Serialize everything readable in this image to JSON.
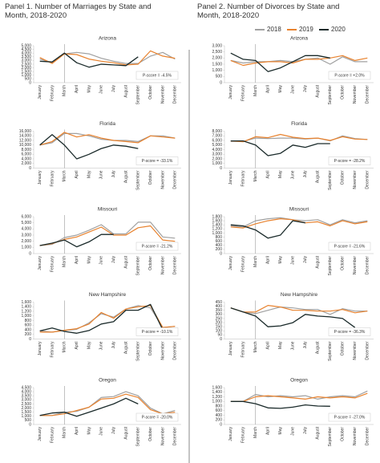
{
  "panel_titles": [
    "Panel 1. Number of Marriages by State and Month, 2018-2020",
    "Panel 2. Number of Divorces by State and Month, 2018-2020"
  ],
  "legend": [
    {
      "name": "2018",
      "color": "#a0a0a0"
    },
    {
      "name": "2019",
      "color": "#e8822e"
    },
    {
      "name": "2020",
      "color": "#1a2a2a"
    }
  ],
  "chart_data": [
    {
      "type": "line",
      "title": "Arizona",
      "annotation": "P-score = -4.5%",
      "categories": [
        "January",
        "February",
        "March",
        "April",
        "May",
        "June",
        "July",
        "August",
        "September",
        "October",
        "November",
        "December"
      ],
      "ylim": [
        0,
        5000
      ],
      "yticks": [
        0,
        500,
        {
          "value": 1000,
          "label": "1,000"
        },
        {
          "value": 1500,
          "label": "1,500"
        },
        {
          "value": 2000,
          "label": "2,000"
        },
        {
          "value": 2500,
          "label": "2,500"
        },
        {
          "value": 3000,
          "label": "3,000"
        },
        {
          "value": 3500,
          "label": "3,500"
        },
        {
          "value": 4000,
          "label": "4,000"
        },
        {
          "value": 4500,
          "label": "4,500"
        },
        {
          "value": 5000,
          "label": "5,000"
        }
      ],
      "series": [
        {
          "values": [
            3200,
            2700,
            3900,
            4100,
            3900,
            3300,
            2900,
            2600,
            2600,
            3600,
            4100,
            3200
          ]
        },
        {
          "values": [
            3400,
            2600,
            3900,
            3800,
            3200,
            2900,
            2700,
            2400,
            2500,
            4300,
            3600,
            3300
          ]
        },
        {
          "values": [
            2900,
            2800,
            4000,
            2700,
            2100,
            2500,
            2400,
            2300,
            3500,
            null,
            null,
            null
          ]
        }
      ]
    },
    {
      "type": "line",
      "title": "Florida",
      "annotation": "P-score = -33.1%",
      "categories": [
        "January",
        "February",
        "March",
        "April",
        "May",
        "June",
        "July",
        "August",
        "September",
        "October",
        "November",
        "December"
      ],
      "ylim": [
        0,
        16000
      ],
      "yticks": [
        0,
        {
          "value": 2000,
          "label": "2,000"
        },
        {
          "value": 4000,
          "label": "4,000"
        },
        {
          "value": 6000,
          "label": "6,000"
        },
        {
          "value": 8000,
          "label": "8,000"
        },
        {
          "value": 10000,
          "label": "10,000"
        },
        {
          "value": 12000,
          "label": "12,000"
        },
        {
          "value": 14000,
          "label": "14,000"
        },
        {
          "value": 16000,
          "label": "16,000"
        }
      ],
      "series": [
        {
          "values": [
            10000,
            11000,
            15000,
            15000,
            14000,
            12500,
            12000,
            12000,
            11500,
            14000,
            14000,
            13000
          ]
        },
        {
          "values": [
            10000,
            11500,
            15500,
            13500,
            14500,
            13000,
            12000,
            11500,
            11000,
            14000,
            13500,
            13000
          ]
        },
        {
          "values": [
            10000,
            14500,
            10000,
            4000,
            6000,
            8500,
            10000,
            9500,
            8500,
            null,
            null,
            null
          ]
        }
      ]
    },
    {
      "type": "line",
      "title": "Missouri",
      "annotation": "P-score = -21.2%",
      "categories": [
        "January",
        "February",
        "March",
        "April",
        "May",
        "June",
        "July",
        "August",
        "September",
        "October",
        "November",
        "December"
      ],
      "ylim": [
        0,
        6000
      ],
      "yticks": [
        0,
        {
          "value": 1000,
          "label": "1,000"
        },
        {
          "value": 2000,
          "label": "2,000"
        },
        {
          "value": 3000,
          "label": "3,000"
        },
        {
          "value": 4000,
          "label": "4,000"
        },
        {
          "value": 5000,
          "label": "5,000"
        },
        {
          "value": 6000,
          "label": "6,000"
        }
      ],
      "series": [
        {
          "values": [
            1300,
            1500,
            2600,
            3000,
            3800,
            4700,
            3200,
            3200,
            5100,
            5100,
            2700,
            2500
          ]
        },
        {
          "values": [
            1300,
            1600,
            2300,
            2700,
            3500,
            4300,
            3000,
            3000,
            4200,
            4500,
            2200,
            2000
          ]
        },
        {
          "values": [
            1300,
            1700,
            2200,
            1100,
            1900,
            3100,
            3100,
            null,
            null,
            null,
            null,
            null
          ]
        }
      ]
    },
    {
      "type": "line",
      "title": "New Hampshire",
      "annotation": "P-score = -10.1%",
      "categories": [
        "January",
        "February",
        "March",
        "April",
        "May",
        "June",
        "July",
        "August",
        "September",
        "October",
        "November",
        "December"
      ],
      "ylim": [
        0,
        1600
      ],
      "yticks": [
        0,
        200,
        400,
        600,
        800,
        {
          "value": 1000,
          "label": "1,000"
        },
        {
          "value": 1200,
          "label": "1,200"
        },
        {
          "value": 1400,
          "label": "1,400"
        },
        {
          "value": 1600,
          "label": "1,600"
        }
      ],
      "series": [
        {
          "values": [
            350,
            300,
            370,
            420,
            700,
            1100,
            950,
            1300,
            1450,
            1350,
            500,
            550
          ]
        },
        {
          "values": [
            300,
            300,
            380,
            450,
            650,
            1150,
            900,
            1300,
            1400,
            1450,
            500,
            550
          ]
        },
        {
          "values": [
            350,
            480,
            330,
            250,
            370,
            650,
            750,
            1250,
            1250,
            1500,
            400,
            null
          ]
        }
      ]
    },
    {
      "type": "line",
      "title": "Oregon",
      "annotation": "P-score = -20.0%",
      "categories": [
        "January",
        "February",
        "March",
        "April",
        "May",
        "June",
        "July",
        "August",
        "September",
        "October",
        "November",
        "December"
      ],
      "ylim": [
        0,
        4500
      ],
      "yticks": [
        0,
        500,
        {
          "value": 1000,
          "label": "1,000"
        },
        {
          "value": 1500,
          "label": "1,500"
        },
        {
          "value": 2000,
          "label": "2,000"
        },
        {
          "value": 2500,
          "label": "2,500"
        },
        {
          "value": 3000,
          "label": "3,000"
        },
        {
          "value": 3500,
          "label": "3,500"
        },
        {
          "value": 4000,
          "label": "4,000"
        },
        {
          "value": 4500,
          "label": "4,500"
        }
      ],
      "series": [
        {
          "values": [
            1100,
            1100,
            1500,
            1600,
            2100,
            3300,
            3400,
            4000,
            3500,
            2000,
            1300,
            1700
          ]
        },
        {
          "values": [
            1100,
            1100,
            1300,
            1700,
            2100,
            3100,
            3200,
            3700,
            3300,
            1800,
            1300,
            1500
          ]
        },
        {
          "values": [
            1100,
            1400,
            1500,
            1000,
            1500,
            2000,
            2500,
            3200,
            2500,
            null,
            null,
            null
          ]
        }
      ]
    },
    {
      "type": "line",
      "title": "Arizona",
      "annotation": "P-score = +2.0%",
      "categories": [
        "January",
        "February",
        "March",
        "April",
        "May",
        "June",
        "July",
        "August",
        "September",
        "October",
        "November",
        "December"
      ],
      "ylim": [
        0,
        3000
      ],
      "yticks": [
        0,
        500,
        {
          "value": 1000,
          "label": "1,000"
        },
        {
          "value": 1500,
          "label": "1,500"
        },
        {
          "value": 2000,
          "label": "2,000"
        },
        {
          "value": 2500,
          "label": "2,500"
        },
        {
          "value": 3000,
          "label": "3,000"
        }
      ],
      "series": [
        {
          "values": [
            1800,
            1600,
            1700,
            1700,
            1800,
            1700,
            1900,
            2000,
            1500,
            2100,
            1700,
            1700
          ]
        },
        {
          "values": [
            1800,
            1400,
            1600,
            1700,
            1700,
            1600,
            1900,
            1900,
            2000,
            2200,
            1800,
            2000
          ]
        },
        {
          "values": [
            2400,
            1900,
            1800,
            900,
            1200,
            1700,
            2200,
            2200,
            2000,
            null,
            null,
            null
          ]
        }
      ]
    },
    {
      "type": "line",
      "title": "Florida",
      "annotation": "P-score = -28.2%",
      "categories": [
        "January",
        "February",
        "March",
        "April",
        "May",
        "June",
        "July",
        "August",
        "September",
        "October",
        "November",
        "December"
      ],
      "ylim": [
        0,
        8000
      ],
      "yticks": [
        0,
        {
          "value": 1000,
          "label": "1,000"
        },
        {
          "value": 2000,
          "label": "2,000"
        },
        {
          "value": 3000,
          "label": "3,000"
        },
        {
          "value": 4000,
          "label": "4,000"
        },
        {
          "value": 5000,
          "label": "5,000"
        },
        {
          "value": 6000,
          "label": "6,000"
        },
        {
          "value": 7000,
          "label": "7,000"
        },
        {
          "value": 8000,
          "label": "8,000"
        }
      ],
      "series": [
        {
          "values": [
            5800,
            5800,
            6500,
            6400,
            6500,
            6500,
            6300,
            6500,
            5900,
            7000,
            6400,
            6200
          ]
        },
        {
          "values": [
            5900,
            5700,
            6800,
            6600,
            7300,
            6700,
            6400,
            6500,
            6000,
            6800,
            6300,
            6200
          ]
        },
        {
          "values": [
            5900,
            5900,
            5000,
            2700,
            3200,
            5000,
            4500,
            5300,
            5300,
            null,
            null,
            null
          ]
        }
      ]
    },
    {
      "type": "line",
      "title": "Missouri",
      "annotation": "P-score = -21.6%",
      "categories": [
        "January",
        "February",
        "March",
        "April",
        "May",
        "June",
        "July",
        "August",
        "September",
        "October",
        "November",
        "December"
      ],
      "ylim": [
        0,
        1800
      ],
      "yticks": [
        0,
        200,
        400,
        600,
        800,
        {
          "value": 1000,
          "label": "1,000"
        },
        {
          "value": 1200,
          "label": "1,200"
        },
        {
          "value": 1400,
          "label": "1,400"
        },
        {
          "value": 1600,
          "label": "1,600"
        },
        {
          "value": 1800,
          "label": "1,800"
        }
      ],
      "series": [
        {
          "values": [
            1350,
            1300,
            1600,
            1700,
            1750,
            1650,
            1600,
            1650,
            1400,
            1650,
            1500,
            1600
          ]
        },
        {
          "values": [
            1300,
            1250,
            1450,
            1600,
            1700,
            1650,
            1500,
            1550,
            1350,
            1600,
            1450,
            1550
          ]
        },
        {
          "values": [
            1400,
            1350,
            1150,
            750,
            900,
            1600,
            1500,
            null,
            null,
            null,
            null,
            null
          ]
        }
      ]
    },
    {
      "type": "line",
      "title": "New Hampshire",
      "annotation": "P-score = -36.3%",
      "categories": [
        "January",
        "February",
        "March",
        "April",
        "May",
        "June",
        "July",
        "August",
        "September",
        "October",
        "November",
        "December"
      ],
      "ylim": [
        0,
        450
      ],
      "yticks": [
        0,
        50,
        100,
        150,
        200,
        250,
        300,
        350,
        400,
        450
      ],
      "series": [
        {
          "values": [
            380,
            330,
            310,
            350,
            390,
            380,
            360,
            360,
            300,
            370,
            340,
            340
          ]
        },
        {
          "values": [
            380,
            330,
            330,
            410,
            390,
            350,
            350,
            340,
            340,
            360,
            320,
            340
          ]
        },
        {
          "values": [
            380,
            330,
            280,
            150,
            160,
            200,
            300,
            280,
            270,
            250,
            140,
            null
          ]
        }
      ]
    },
    {
      "type": "line",
      "title": "Oregon",
      "annotation": "P-score = -27.0%",
      "categories": [
        "January",
        "February",
        "March",
        "April",
        "May",
        "June",
        "July",
        "August",
        "September",
        "October",
        "November",
        "December"
      ],
      "ylim": [
        0,
        1600
      ],
      "yticks": [
        0,
        200,
        400,
        600,
        800,
        {
          "value": 1000,
          "label": "1,000"
        },
        {
          "value": 1200,
          "label": "1,200"
        },
        {
          "value": 1400,
          "label": "1,400"
        },
        {
          "value": 1600,
          "label": "1,600"
        }
      ],
      "series": [
        {
          "values": [
            1000,
            1000,
            1300,
            1200,
            1250,
            1200,
            1250,
            1100,
            1200,
            1250,
            1200,
            1450
          ]
        },
        {
          "values": [
            1000,
            1000,
            1200,
            1250,
            1200,
            1150,
            1100,
            1200,
            1150,
            1200,
            1150,
            1350
          ]
        },
        {
          "values": [
            1000,
            1000,
            900,
            720,
            700,
            750,
            850,
            800,
            790,
            null,
            null,
            null
          ]
        }
      ]
    }
  ]
}
